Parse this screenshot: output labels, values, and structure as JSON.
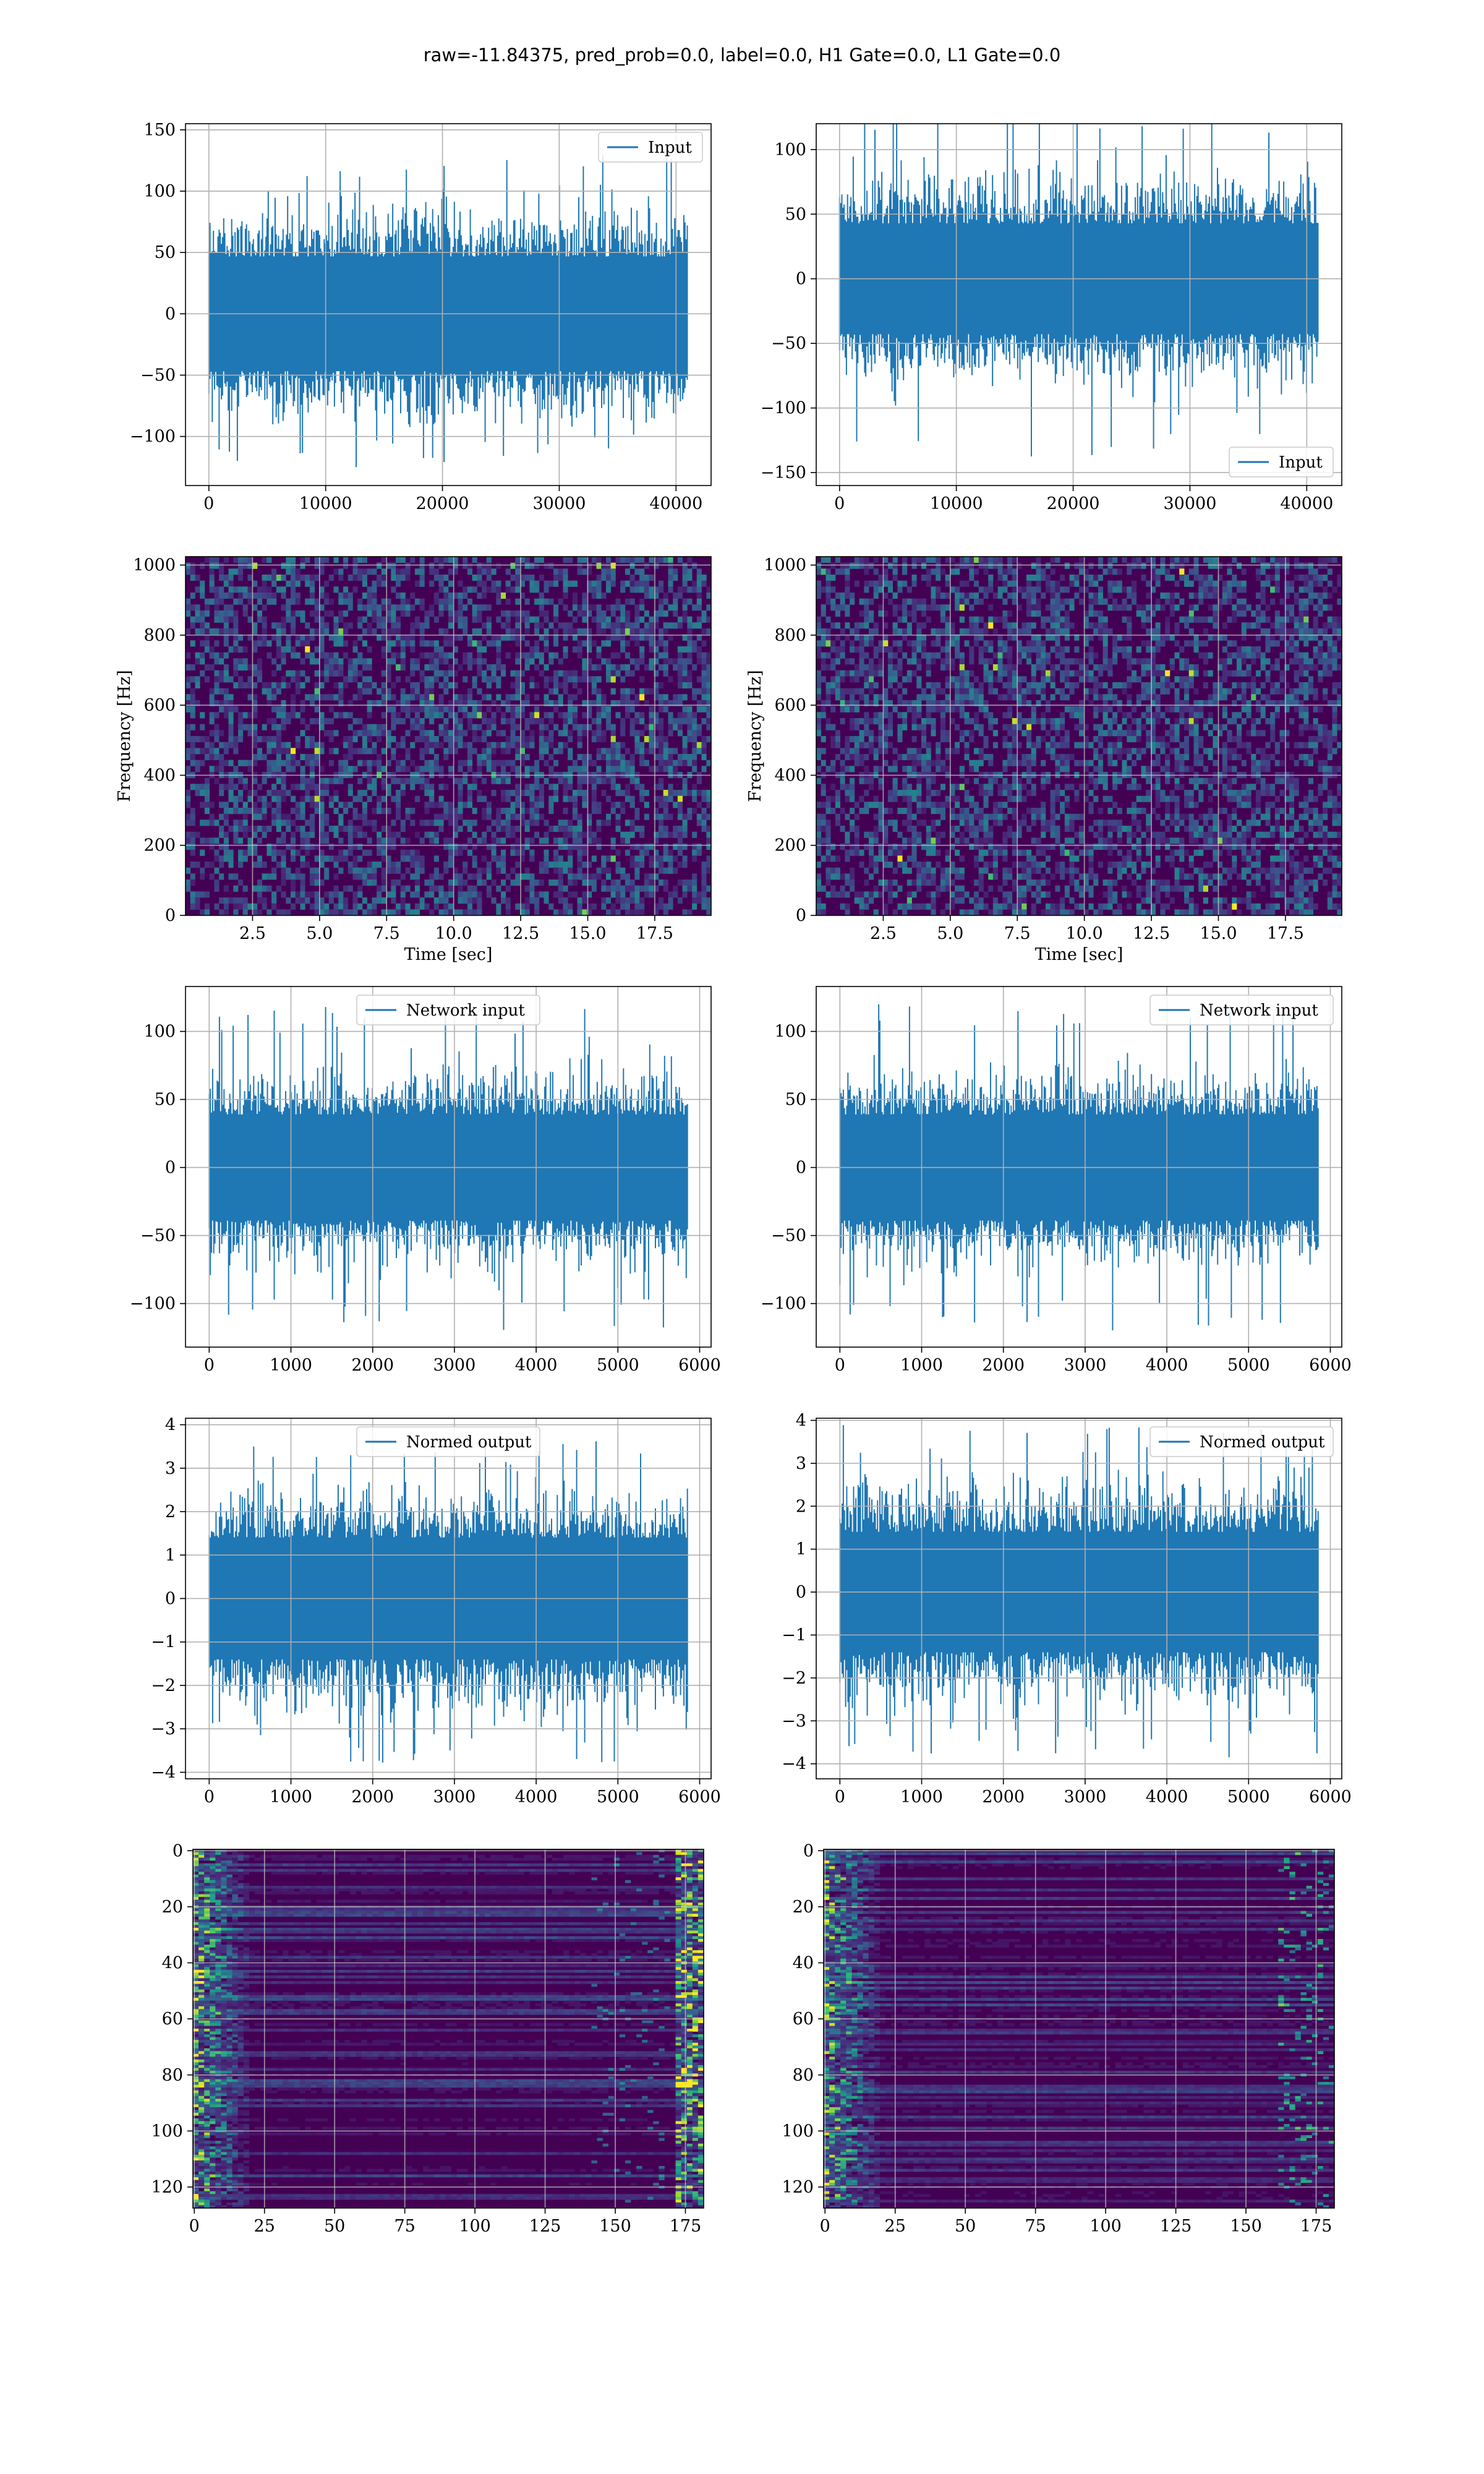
{
  "suptitle": "raw=-11.84375, pred_prob=0.0, label=0.0, H1 Gate=0.0, L1 Gate=0.0",
  "colors": {
    "line": "#1f77b4",
    "grid": "#b0b0b0",
    "viridis_low": "#440154",
    "viridis_high": "#fde725"
  },
  "chart_data": [
    {
      "id": "r1c1",
      "type": "line",
      "series": [
        {
          "name": "Input"
        }
      ],
      "legend": "top-right",
      "xlim": [
        -2000,
        43000
      ],
      "ylim": [
        -140,
        155
      ],
      "xticks": [
        0,
        10000,
        20000,
        30000,
        40000
      ],
      "xtick_labels": [
        "0",
        "10000",
        "20000",
        "30000",
        "40000"
      ],
      "yticks": [
        -100,
        -50,
        0,
        50,
        100,
        150
      ],
      "ytick_labels": [
        "−100",
        "−50",
        "0",
        "50",
        "100",
        "150"
      ],
      "x_range": [
        0,
        40960
      ],
      "typical_amplitude": 60,
      "peak_amplitude": 130,
      "grid": true,
      "xlabel": "",
      "ylabel": ""
    },
    {
      "id": "r1c2",
      "type": "line",
      "series": [
        {
          "name": "Input"
        }
      ],
      "legend": "bottom-right",
      "xlim": [
        -2000,
        43000
      ],
      "ylim": [
        -160,
        120
      ],
      "xticks": [
        0,
        10000,
        20000,
        30000,
        40000
      ],
      "xtick_labels": [
        "0",
        "10000",
        "20000",
        "30000",
        "40000"
      ],
      "yticks": [
        -150,
        -100,
        -50,
        0,
        50,
        100
      ],
      "ytick_labels": [
        "−150",
        "−100",
        "−50",
        "0",
        "50",
        "100"
      ],
      "x_range": [
        0,
        40960
      ],
      "typical_amplitude": 55,
      "peak_amplitude": 140,
      "grid": true,
      "xlabel": "",
      "ylabel": ""
    },
    {
      "id": "r2c1",
      "type": "heatmap",
      "xlim": [
        0,
        19.6
      ],
      "ylim": [
        0,
        1024
      ],
      "xticks": [
        2.5,
        5.0,
        7.5,
        10.0,
        12.5,
        15.0,
        17.5
      ],
      "xtick_labels": [
        "2.5",
        "5.0",
        "7.5",
        "10.0",
        "12.5",
        "15.0",
        "17.5"
      ],
      "yticks": [
        0,
        200,
        400,
        600,
        800,
        1000
      ],
      "ytick_labels": [
        "0",
        "200",
        "400",
        "600",
        "800",
        "1000"
      ],
      "xlabel": "Time [sec]",
      "ylabel": "Frequency [Hz]",
      "colormap": "viridis",
      "grid": true
    },
    {
      "id": "r2c2",
      "type": "heatmap",
      "xlim": [
        0,
        19.6
      ],
      "ylim": [
        0,
        1024
      ],
      "xticks": [
        2.5,
        5.0,
        7.5,
        10.0,
        12.5,
        15.0,
        17.5
      ],
      "xtick_labels": [
        "2.5",
        "5.0",
        "7.5",
        "10.0",
        "12.5",
        "15.0",
        "17.5"
      ],
      "yticks": [
        0,
        200,
        400,
        600,
        800,
        1000
      ],
      "ytick_labels": [
        "0",
        "200",
        "400",
        "600",
        "800",
        "1000"
      ],
      "xlabel": "Time [sec]",
      "ylabel": "Frequency [Hz]",
      "colormap": "viridis",
      "grid": true
    },
    {
      "id": "r3c1",
      "type": "line",
      "series": [
        {
          "name": "Network input"
        }
      ],
      "legend": "top-center",
      "xlim": [
        -290,
        6140
      ],
      "ylim": [
        -132,
        133
      ],
      "xticks": [
        0,
        1000,
        2000,
        3000,
        4000,
        5000,
        6000
      ],
      "xtick_labels": [
        "0",
        "1000",
        "2000",
        "3000",
        "4000",
        "5000",
        "6000"
      ],
      "yticks": [
        -100,
        -50,
        0,
        50,
        100
      ],
      "ytick_labels": [
        "−100",
        "−50",
        "0",
        "50",
        "100"
      ],
      "x_range": [
        0,
        5850
      ],
      "typical_amplitude": 50,
      "peak_amplitude": 120,
      "grid": true,
      "xlabel": "",
      "ylabel": ""
    },
    {
      "id": "r3c2",
      "type": "line",
      "series": [
        {
          "name": "Network input"
        }
      ],
      "legend": "top-right",
      "xlim": [
        -290,
        6140
      ],
      "ylim": [
        -132,
        133
      ],
      "xticks": [
        0,
        1000,
        2000,
        3000,
        4000,
        5000,
        6000
      ],
      "xtick_labels": [
        "0",
        "1000",
        "2000",
        "3000",
        "4000",
        "5000",
        "6000"
      ],
      "yticks": [
        -100,
        -50,
        0,
        50,
        100
      ],
      "ytick_labels": [
        "−100",
        "−50",
        "0",
        "50",
        "100"
      ],
      "x_range": [
        0,
        5850
      ],
      "typical_amplitude": 50,
      "peak_amplitude": 120,
      "grid": true,
      "xlabel": "",
      "ylabel": ""
    },
    {
      "id": "r4c1",
      "type": "line",
      "series": [
        {
          "name": "Normed output"
        }
      ],
      "legend": "top-center",
      "xlim": [
        -290,
        6140
      ],
      "ylim": [
        -4.15,
        4.15
      ],
      "xticks": [
        0,
        1000,
        2000,
        3000,
        4000,
        5000,
        6000
      ],
      "xtick_labels": [
        "0",
        "1000",
        "2000",
        "3000",
        "4000",
        "5000",
        "6000"
      ],
      "yticks": [
        -4,
        -3,
        -2,
        -1,
        0,
        1,
        2,
        3,
        4
      ],
      "ytick_labels": [
        "−4",
        "−3",
        "−2",
        "−1",
        "0",
        "1",
        "2",
        "3",
        "4"
      ],
      "x_range": [
        0,
        5850
      ],
      "typical_amplitude": 1.8,
      "peak_amplitude": 3.8,
      "grid": true,
      "xlabel": "",
      "ylabel": ""
    },
    {
      "id": "r4c2",
      "type": "line",
      "series": [
        {
          "name": "Normed output"
        }
      ],
      "legend": "top-right",
      "xlim": [
        -290,
        6140
      ],
      "ylim": [
        -4.35,
        4.05
      ],
      "xticks": [
        0,
        1000,
        2000,
        3000,
        4000,
        5000,
        6000
      ],
      "xtick_labels": [
        "0",
        "1000",
        "2000",
        "3000",
        "4000",
        "5000",
        "6000"
      ],
      "yticks": [
        -4,
        -3,
        -2,
        -1,
        0,
        1,
        2,
        3,
        4
      ],
      "ytick_labels": [
        "−4",
        "−3",
        "−2",
        "−1",
        "0",
        "1",
        "2",
        "3",
        "4"
      ],
      "x_range": [
        0,
        5850
      ],
      "typical_amplitude": 1.8,
      "peak_amplitude": 3.9,
      "grid": true,
      "xlabel": "",
      "ylabel": ""
    },
    {
      "id": "r5c1",
      "type": "heatmap",
      "xlim": [
        -0.5,
        181.5
      ],
      "ylim": [
        127.5,
        -0.5
      ],
      "rows": 128,
      "cols": 182,
      "xticks": [
        0,
        25,
        50,
        75,
        100,
        125,
        150,
        175
      ],
      "xtick_labels": [
        "0",
        "25",
        "50",
        "75",
        "100",
        "125",
        "150",
        "175"
      ],
      "yticks": [
        0,
        20,
        40,
        60,
        80,
        100,
        120
      ],
      "ytick_labels": [
        "0",
        "20",
        "40",
        "60",
        "80",
        "100",
        "120"
      ],
      "colormap": "viridis",
      "grid": true,
      "xlabel": "",
      "ylabel": ""
    },
    {
      "id": "r5c2",
      "type": "heatmap",
      "xlim": [
        -0.5,
        181.5
      ],
      "ylim": [
        127.5,
        -0.5
      ],
      "rows": 128,
      "cols": 182,
      "xticks": [
        0,
        25,
        50,
        75,
        100,
        125,
        150,
        175
      ],
      "xtick_labels": [
        "0",
        "25",
        "50",
        "75",
        "100",
        "125",
        "150",
        "175"
      ],
      "yticks": [
        0,
        20,
        40,
        60,
        80,
        100,
        120
      ],
      "ytick_labels": [
        "0",
        "20",
        "40",
        "60",
        "80",
        "100",
        "120"
      ],
      "colormap": "viridis",
      "grid": true,
      "xlabel": "",
      "ylabel": ""
    }
  ]
}
